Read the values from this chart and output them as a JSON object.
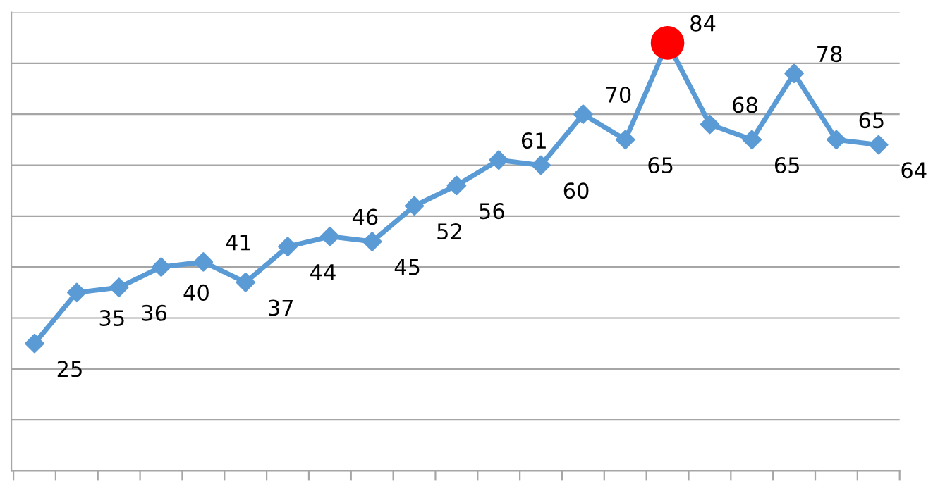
{
  "chart_data": {
    "type": "line",
    "categories": [
      null,
      null,
      null,
      null,
      null,
      null,
      null,
      null,
      null,
      null,
      null,
      null,
      null,
      null,
      null,
      null,
      null,
      null,
      null,
      null,
      null
    ],
    "series": [
      {
        "color": "#5b9bd5",
        "colors": [
          "#5b9bd5",
          "#5b9bd5",
          "#5b9bd5",
          "#5b9bd5",
          "#5b9bd5",
          "#5b9bd5",
          "#5b9bd5",
          "#5b9bd5",
          "#5b9bd5",
          "#5b9bd5",
          "#5b9bd5",
          "#5b9bd5",
          "#5b9bd5",
          "#5b9bd5",
          "#5b9bd5",
          "#ff0000",
          "#5b9bd5",
          "#5b9bd5",
          "#5b9bd5",
          "#5b9bd5",
          "#5b9bd5"
        ],
        "marker": "diamond",
        "values": [
          25,
          35,
          36,
          40,
          41,
          37,
          44,
          46,
          45,
          52,
          56,
          61,
          60,
          70,
          65,
          84,
          68,
          65,
          78,
          65,
          64
        ]
      }
    ],
    "ylim": [
      0,
      90
    ],
    "yticks": [
      {
        "value": 0,
        "label": null
      },
      {
        "value": 10,
        "label": null
      },
      {
        "value": 20,
        "label": null
      },
      {
        "value": 30,
        "label": null
      },
      {
        "value": 40,
        "label": null
      },
      {
        "value": 50,
        "label": null
      },
      {
        "value": 60,
        "label": null
      },
      {
        "value": 70,
        "label": null
      },
      {
        "value": 80,
        "label": null
      },
      {
        "value": 90,
        "label": null
      }
    ],
    "grid": "y",
    "data_labels": true
  }
}
